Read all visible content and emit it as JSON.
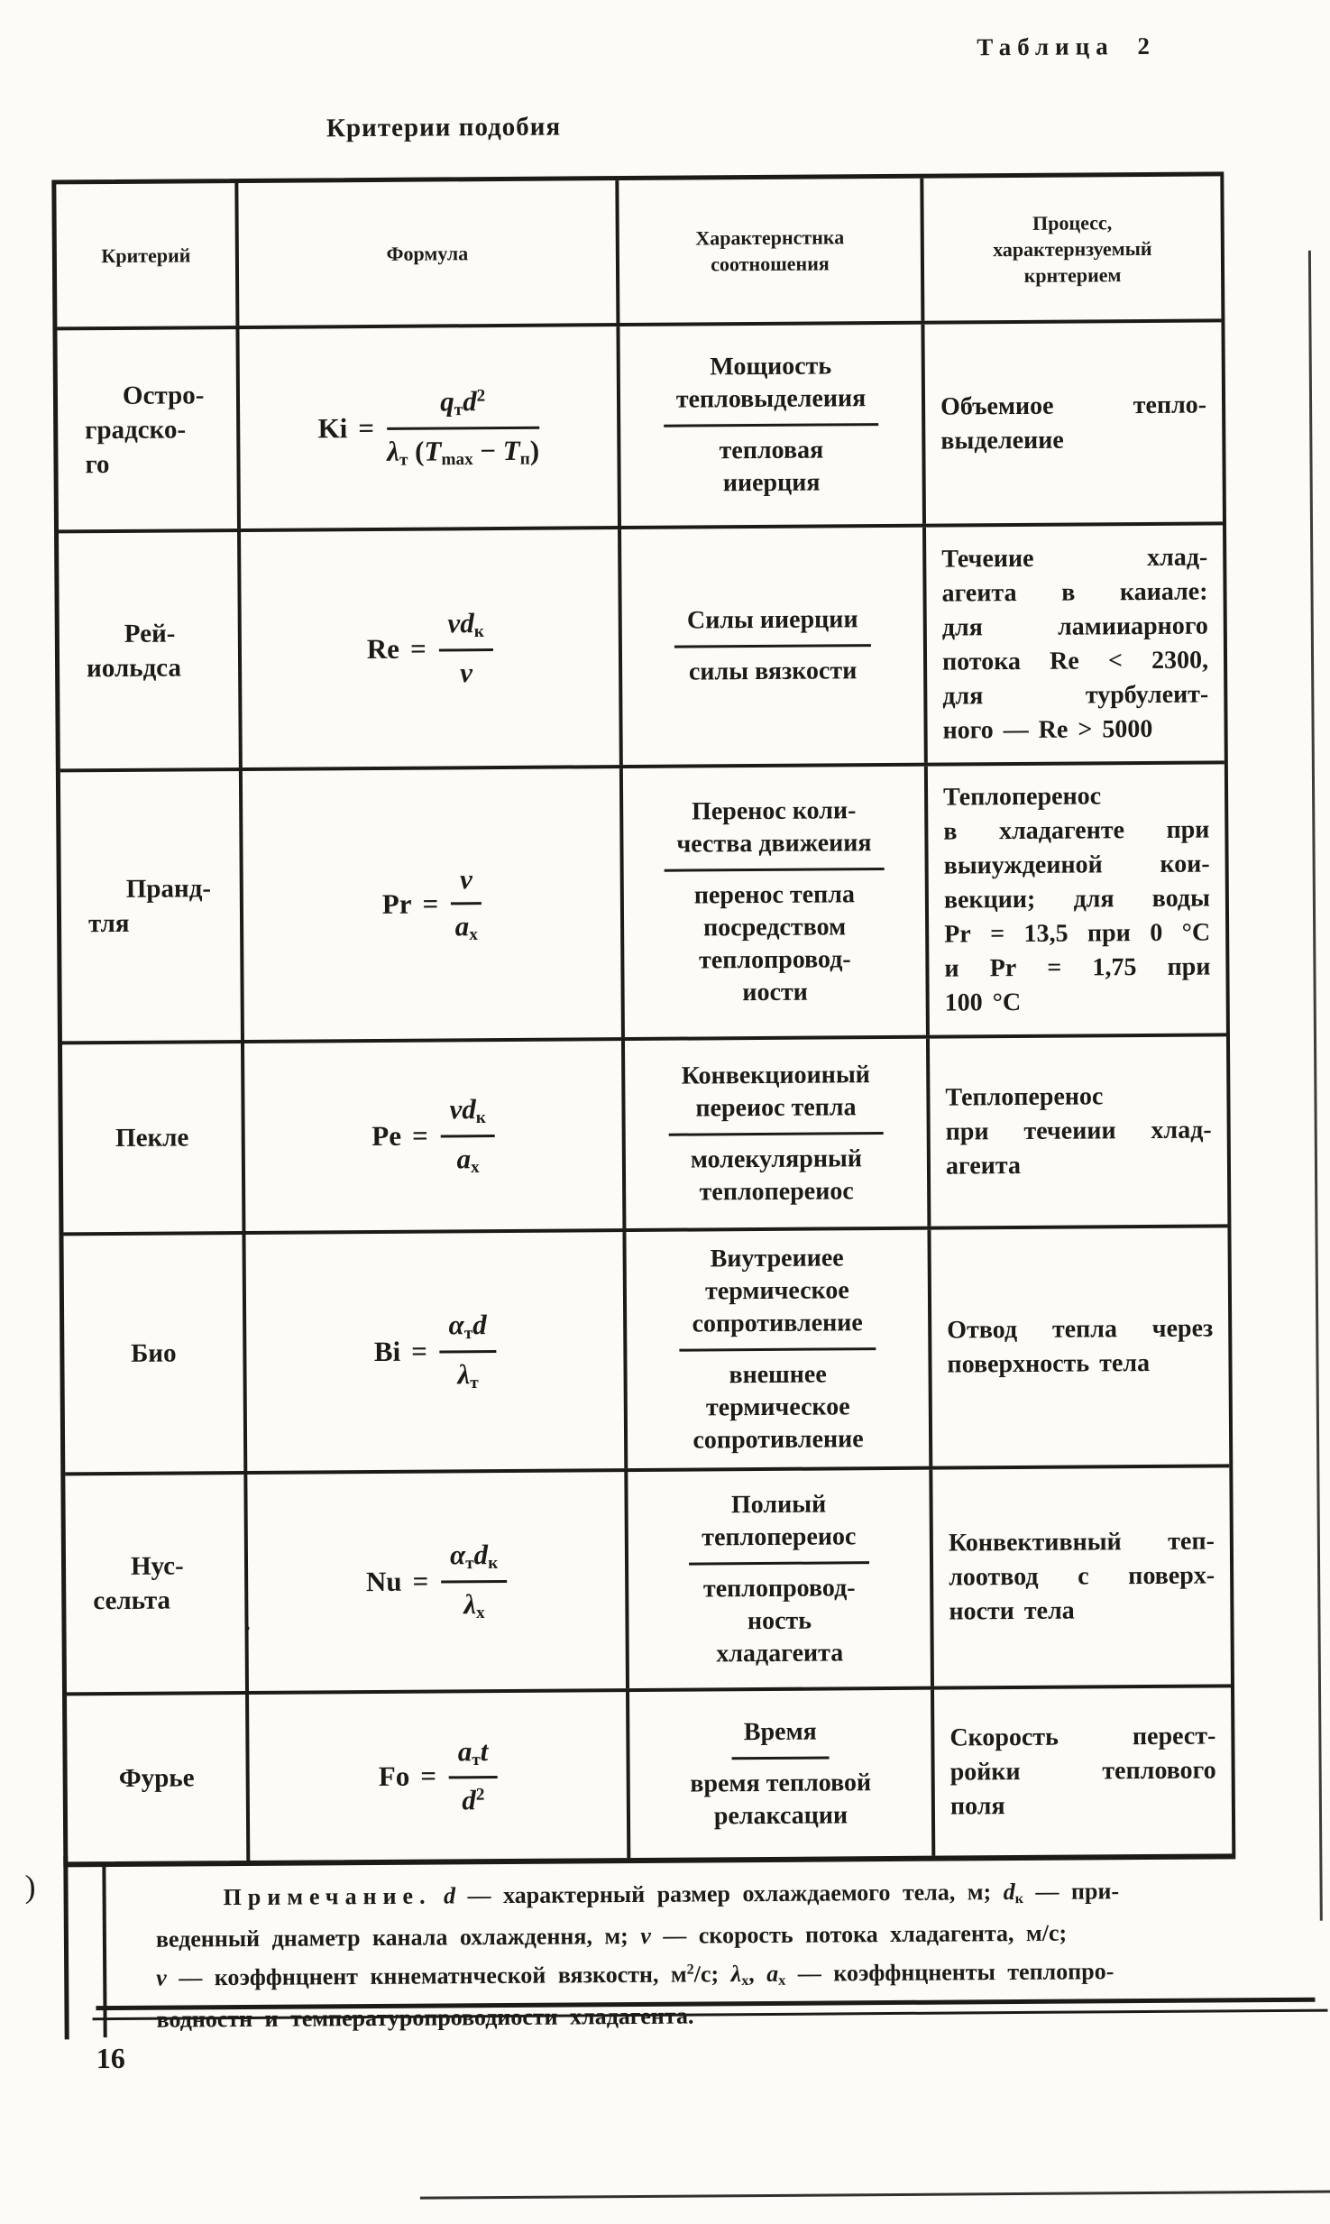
{
  "page": {
    "table_label": "Таблица 2",
    "title": "Критерии подобия",
    "page_number": "16",
    "margin_artifact": ")"
  },
  "table": {
    "equals_sign": "=",
    "headers": [
      {
        "lines": [
          "Критерий"
        ]
      },
      {
        "lines": [
          "Формула"
        ]
      },
      {
        "lines": [
          "Характернстнка",
          "соотношения"
        ]
      },
      {
        "lines": [
          "Процесс,",
          "характернзуемый",
          "крнтерием"
        ]
      }
    ],
    "rows": [
      {
        "criterion_lines": [
          "Остро-",
          "градско-",
          "го"
        ],
        "formula": {
          "name": "Ki",
          "num": [
            {
              "t": "q",
              "s": "i"
            },
            {
              "t": "т",
              "s": "sub"
            },
            {
              "t": "d",
              "s": "i"
            },
            {
              "t": "2",
              "s": "sup"
            }
          ],
          "den": [
            {
              "t": "λ",
              "s": "i"
            },
            {
              "t": "т",
              "s": "sub"
            },
            {
              "t": " (",
              "s": "r"
            },
            {
              "t": "T",
              "s": "i"
            },
            {
              "t": "max",
              "s": "sub"
            },
            {
              "t": " − ",
              "s": "r"
            },
            {
              "t": "T",
              "s": "i"
            },
            {
              "t": "п",
              "s": "sub"
            },
            {
              "t": ")",
              "s": "r"
            }
          ]
        },
        "ratio": {
          "num_lines": [
            "Мощиость",
            "тепловыделеиия"
          ],
          "den_lines": [
            "тепловая",
            "ииерция"
          ]
        },
        "process_lines": [
          "Объемиое тепло-",
          "выделеиие"
        ]
      },
      {
        "criterion_lines": [
          "Рей-",
          "иольдса"
        ],
        "formula": {
          "name": "Re",
          "num": [
            {
              "t": "v",
              "s": "i"
            },
            {
              "t": "d",
              "s": "i"
            },
            {
              "t": "к",
              "s": "sub"
            }
          ],
          "den": [
            {
              "t": "ν",
              "s": "i"
            }
          ]
        },
        "ratio": {
          "num_lines": [
            "Силы ииерции"
          ],
          "den_lines": [
            "силы вязкости"
          ]
        },
        "process_lines": [
          "Течеиие хлад-",
          "агеита в каиале:",
          "для ламииарного",
          "потока Re < 2300,",
          "для турбулеит-",
          "ного — Re > 5000"
        ]
      },
      {
        "criterion_lines": [
          "Пранд-",
          "тля"
        ],
        "formula": {
          "name": "Pr",
          "num": [
            {
              "t": "ν",
              "s": "i"
            }
          ],
          "den": [
            {
              "t": "a",
              "s": "i"
            },
            {
              "t": "х",
              "s": "sub"
            }
          ]
        },
        "ratio": {
          "num_lines": [
            "Перенос коли-",
            "чества движеиия"
          ],
          "den_lines": [
            "перенос тепла",
            "посредством",
            "теплопровод-",
            "иости"
          ]
        },
        "process_lines": [
          "Теплоперенос",
          "в хладагенте при",
          "выиуждеиной кои-",
          "векции; для воды",
          "Pr = 13,5 при 0 °С",
          "и Pr = 1,75 при",
          "100 °С"
        ]
      },
      {
        "criterion_lines": [
          "Пекле"
        ],
        "formula": {
          "name": "Pe",
          "num": [
            {
              "t": "v",
              "s": "i"
            },
            {
              "t": "d",
              "s": "i"
            },
            {
              "t": "к",
              "s": "sub"
            }
          ],
          "den": [
            {
              "t": "a",
              "s": "i"
            },
            {
              "t": "х",
              "s": "sub"
            }
          ]
        },
        "ratio": {
          "num_lines": [
            "Конвекциоиный",
            "переиос тепла"
          ],
          "den_lines": [
            "молекулярный",
            "теплопереиос"
          ]
        },
        "process_lines": [
          "Теплоперенос",
          "при течеиии хлад-",
          "агеита"
        ]
      },
      {
        "criterion_lines": [
          "Био"
        ],
        "formula": {
          "name": "Bi",
          "num": [
            {
              "t": "α",
              "s": "i"
            },
            {
              "t": "т",
              "s": "sub"
            },
            {
              "t": "d",
              "s": "i"
            }
          ],
          "den": [
            {
              "t": "λ",
              "s": "i"
            },
            {
              "t": "т",
              "s": "sub"
            }
          ]
        },
        "ratio": {
          "num_lines": [
            "Виутреииее",
            "термическое",
            "сопротивление"
          ],
          "den_lines": [
            "внешнее",
            "термическое",
            "сопротивление"
          ]
        },
        "process_lines": [
          "Отвод тепла через",
          "поверхность тела"
        ]
      },
      {
        "criterion_lines": [
          "Нус-",
          "сельта"
        ],
        "formula": {
          "name": "Nu",
          "num": [
            {
              "t": "α",
              "s": "i"
            },
            {
              "t": "т",
              "s": "sub"
            },
            {
              "t": "d",
              "s": "i"
            },
            {
              "t": "к",
              "s": "sub"
            }
          ],
          "den": [
            {
              "t": "λ",
              "s": "i"
            },
            {
              "t": "х",
              "s": "sub"
            }
          ]
        },
        "ratio": {
          "num_lines": [
            "Полиый",
            "теплопереиос"
          ],
          "den_lines": [
            "теплопровод-",
            "ность",
            "хладагеита"
          ]
        },
        "process_lines": [
          "Конвективный теп-",
          "лоотвод с поверх-",
          "ности тела"
        ]
      },
      {
        "criterion_lines": [
          "Фурье"
        ],
        "formula": {
          "name": "Fo",
          "num": [
            {
              "t": "a",
              "s": "i"
            },
            {
              "t": "т",
              "s": "sub"
            },
            {
              "t": "t",
              "s": "i"
            }
          ],
          "den": [
            {
              "t": "d",
              "s": "i"
            },
            {
              "t": "2",
              "s": "sup"
            }
          ]
        },
        "ratio": {
          "num_lines": [
            "Время"
          ],
          "den_lines": [
            "время тепловой",
            "релаксации"
          ]
        },
        "process_lines": [
          "Скорость перест-",
          "ройки теплового",
          "поля"
        ]
      }
    ],
    "note_lines": [
      [
        {
          "t": "Примечание.",
          "s": "sp"
        },
        {
          "t": " ",
          "s": "r"
        },
        {
          "t": "d",
          "s": "i"
        },
        {
          "t": " — характерный размер охлаждаемого тела, м; ",
          "s": "r"
        },
        {
          "t": "d",
          "s": "i"
        },
        {
          "t": "к",
          "s": "sub"
        },
        {
          "t": " — при-",
          "s": "r"
        }
      ],
      [
        {
          "t": "веденный днаметр канала охлаждення, м; ",
          "s": "r"
        },
        {
          "t": "v",
          "s": "i"
        },
        {
          "t": " — скорость потока хладагента, м/с;",
          "s": "r"
        }
      ],
      [
        {
          "t": "ν",
          "s": "i"
        },
        {
          "t": " — коэффнцнент кннематнческой вязкостн, м",
          "s": "r"
        },
        {
          "t": "2",
          "s": "sup"
        },
        {
          "t": "/с; ",
          "s": "r"
        },
        {
          "t": "λ",
          "s": "i"
        },
        {
          "t": "х",
          "s": "sub"
        },
        {
          "t": ", ",
          "s": "r"
        },
        {
          "t": "a",
          "s": "i"
        },
        {
          "t": "х",
          "s": "sub"
        },
        {
          "t": " — коэффнцненты теплопро-",
          "s": "r"
        }
      ],
      [
        {
          "t": "водностн и температуропроводиости хладагента.",
          "s": "r"
        }
      ]
    ]
  }
}
